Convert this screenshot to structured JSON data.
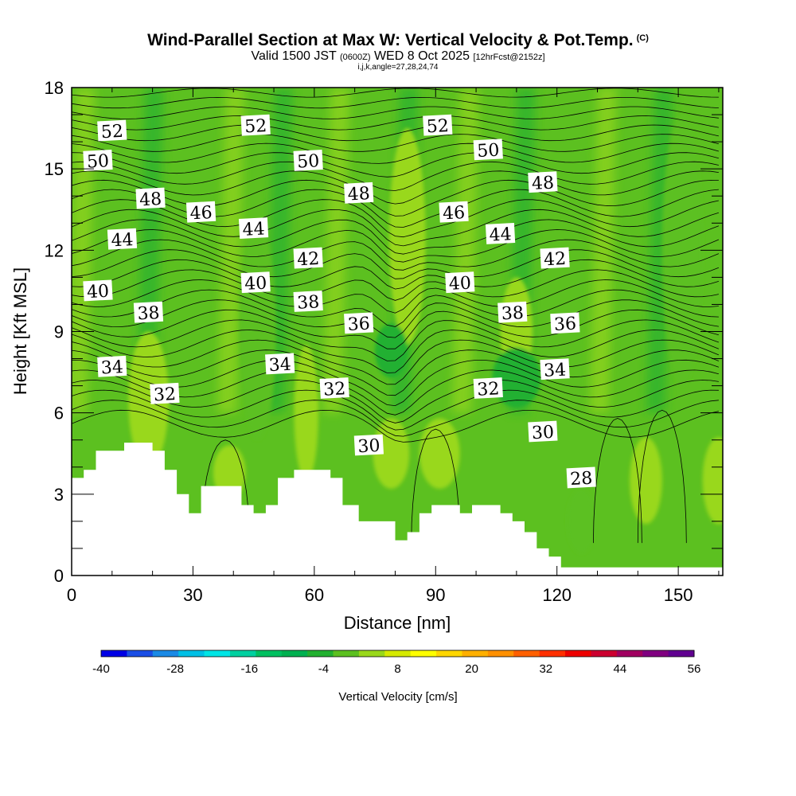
{
  "header": {
    "title": "Wind-Parallel Section at Max W: Vertical Velocity & Pot.Temp.",
    "copyright": "(C)",
    "valid_prefix": "Valid 1500 JST",
    "valid_utc": "(0600Z)",
    "valid_date": "WED 8 Oct 2025",
    "forecast": "[12hrFcst@2152z]",
    "indices": "i,j,k,angle=27,28,24,74"
  },
  "chart_data": {
    "type": "heatmap",
    "title": "Wind-Parallel Section at Max W: Vertical Velocity & Pot.Temp.",
    "xlabel": "Distance [nm]",
    "ylabel": "Height [Kft MSL]",
    "xlim": [
      0,
      161
    ],
    "ylim": [
      0,
      18
    ],
    "x_ticks": [
      "0",
      "30",
      "60",
      "90",
      "120",
      "150"
    ],
    "y_ticks": [
      "0",
      "3",
      "6",
      "9",
      "12",
      "15",
      "18"
    ],
    "colorbar": {
      "label": "Vertical Velocity [cm/s]",
      "range": [
        -40,
        56
      ],
      "tick_labels": [
        "-40",
        "-28",
        "-16",
        "-4",
        "8",
        "20",
        "32",
        "44",
        "56"
      ],
      "colors": [
        "#0000e6",
        "#1a4ee6",
        "#1a8ae6",
        "#00c0e6",
        "#00e6e6",
        "#00d0a0",
        "#00c060",
        "#00b050",
        "#22b030",
        "#5cc020",
        "#99d81a",
        "#d6ea00",
        "#ffff00",
        "#ffd700",
        "#ffb000",
        "#ff9000",
        "#ff6000",
        "#ff3000",
        "#ee0000",
        "#cc0030",
        "#a00060",
        "#800080",
        "#600090"
      ]
    },
    "vertical_velocity_cells": [
      {
        "x": 79,
        "y": 4.5,
        "w": 5,
        "rx": 4.5,
        "ry": 1.3
      },
      {
        "x": 91,
        "y": 4.5,
        "w": 4,
        "rx": 5.0,
        "ry": 1.3
      },
      {
        "x": 19,
        "y": 6.5,
        "w": 5,
        "rx": 5.0,
        "ry": 2.5
      },
      {
        "x": 39,
        "y": 3.8,
        "w": 2,
        "rx": 4.0,
        "ry": 1.0
      },
      {
        "x": 58,
        "y": 6.0,
        "w": 2,
        "rx": 3.0,
        "ry": 2.5
      },
      {
        "x": 83,
        "y": 12.5,
        "w": 2,
        "rx": 4.5,
        "ry": 4.0
      },
      {
        "x": 110,
        "y": 9.0,
        "w": 2,
        "rx": 4.0,
        "ry": 2.0
      },
      {
        "x": 142,
        "y": 3.5,
        "w": 3,
        "rx": 4.0,
        "ry": 1.6
      },
      {
        "x": 160,
        "y": 3.5,
        "w": 4,
        "rx": 4.0,
        "ry": 1.6
      },
      {
        "x": 110,
        "y": 7.3,
        "w": -3,
        "rx": 6.0,
        "ry": 1.1
      },
      {
        "x": 79,
        "y": 8.3,
        "w": -3,
        "rx": 4.0,
        "ry": 1.0
      },
      {
        "x": 46,
        "y": 9.0,
        "w": -1,
        "rx": 4.5,
        "ry": 4.0
      },
      {
        "x": 126,
        "y": 2.0,
        "w": -1,
        "rx": 3.5,
        "ry": 1.2
      },
      {
        "x": 151,
        "y": 12.0,
        "w": -1,
        "rx": 5.0,
        "ry": 5.0
      }
    ],
    "isentrope_labels": [
      {
        "text": "52",
        "x": 10,
        "y": 16.4
      },
      {
        "text": "52",
        "x": 45.5,
        "y": 16.6
      },
      {
        "text": "52",
        "x": 90.5,
        "y": 16.6
      },
      {
        "text": "50",
        "x": 6.5,
        "y": 15.3
      },
      {
        "text": "50",
        "x": 58.5,
        "y": 15.3
      },
      {
        "text": "50",
        "x": 103,
        "y": 15.7
      },
      {
        "text": "48",
        "x": 19.5,
        "y": 13.9
      },
      {
        "text": "48",
        "x": 71,
        "y": 14.1
      },
      {
        "text": "48",
        "x": 116.5,
        "y": 14.5
      },
      {
        "text": "46",
        "x": 32,
        "y": 13.4
      },
      {
        "text": "46",
        "x": 94.5,
        "y": 13.4
      },
      {
        "text": "44",
        "x": 12.5,
        "y": 12.4
      },
      {
        "text": "44",
        "x": 45,
        "y": 12.8
      },
      {
        "text": "44",
        "x": 106,
        "y": 12.6
      },
      {
        "text": "42",
        "x": 58.5,
        "y": 11.7
      },
      {
        "text": "42",
        "x": 119.5,
        "y": 11.7
      },
      {
        "text": "40",
        "x": 6.5,
        "y": 10.5
      },
      {
        "text": "40",
        "x": 45.5,
        "y": 10.8
      },
      {
        "text": "40",
        "x": 96,
        "y": 10.8
      },
      {
        "text": "38",
        "x": 19,
        "y": 9.7
      },
      {
        "text": "38",
        "x": 58.5,
        "y": 10.1
      },
      {
        "text": "38",
        "x": 109,
        "y": 9.7
      },
      {
        "text": "36",
        "x": 71,
        "y": 9.3
      },
      {
        "text": "36",
        "x": 122,
        "y": 9.3
      },
      {
        "text": "34",
        "x": 10,
        "y": 7.7
      },
      {
        "text": "34",
        "x": 51.5,
        "y": 7.8
      },
      {
        "text": "34",
        "x": 119.5,
        "y": 7.6
      },
      {
        "text": "32",
        "x": 23,
        "y": 6.7
      },
      {
        "text": "32",
        "x": 65,
        "y": 6.9
      },
      {
        "text": "32",
        "x": 103,
        "y": 6.9
      },
      {
        "text": "30",
        "x": 73.5,
        "y": 4.8
      },
      {
        "text": "30",
        "x": 116.5,
        "y": 5.3
      },
      {
        "text": "28",
        "x": 126,
        "y": 3.6
      }
    ],
    "terrain_height": [
      [
        0,
        3.6
      ],
      [
        3,
        3.6
      ],
      [
        3,
        3.9
      ],
      [
        6,
        3.9
      ],
      [
        6,
        4.6
      ],
      [
        13,
        4.6
      ],
      [
        13,
        4.9
      ],
      [
        20,
        4.9
      ],
      [
        20,
        4.6
      ],
      [
        23,
        4.6
      ],
      [
        23,
        3.9
      ],
      [
        26,
        3.9
      ],
      [
        26,
        3.0
      ],
      [
        29,
        3.0
      ],
      [
        29,
        2.3
      ],
      [
        32,
        2.3
      ],
      [
        32,
        3.3
      ],
      [
        42,
        3.3
      ],
      [
        42,
        2.6
      ],
      [
        45,
        2.6
      ],
      [
        45,
        2.3
      ],
      [
        48,
        2.3
      ],
      [
        48,
        2.6
      ],
      [
        51,
        2.6
      ],
      [
        51,
        3.6
      ],
      [
        55,
        3.6
      ],
      [
        55,
        3.9
      ],
      [
        64,
        3.9
      ],
      [
        64,
        3.6
      ],
      [
        67,
        3.6
      ],
      [
        67,
        2.6
      ],
      [
        71,
        2.6
      ],
      [
        71,
        2.0
      ],
      [
        80,
        2.0
      ],
      [
        80,
        1.3
      ],
      [
        83,
        1.3
      ],
      [
        83,
        1.6
      ],
      [
        86,
        1.6
      ],
      [
        86,
        2.3
      ],
      [
        89,
        2.3
      ],
      [
        89,
        2.6
      ],
      [
        96,
        2.6
      ],
      [
        96,
        2.3
      ],
      [
        99,
        2.3
      ],
      [
        99,
        2.6
      ],
      [
        106,
        2.6
      ],
      [
        106,
        2.3
      ],
      [
        109,
        2.3
      ],
      [
        109,
        2.0
      ],
      [
        112,
        2.0
      ],
      [
        112,
        1.6
      ],
      [
        115,
        1.6
      ],
      [
        115,
        1.0
      ],
      [
        118,
        1.0
      ],
      [
        118,
        0.7
      ],
      [
        121,
        0.7
      ],
      [
        121,
        0.3
      ],
      [
        161,
        0.3
      ]
    ]
  }
}
